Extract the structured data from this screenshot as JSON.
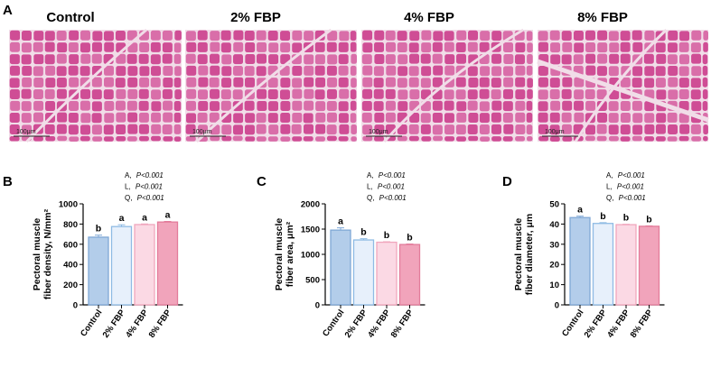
{
  "panel_letters": {
    "a": "A",
    "b": "B",
    "c": "C",
    "d": "D"
  },
  "micrographs": [
    {
      "title": "Control",
      "scale_label": "100μm"
    },
    {
      "title": "2% FBP",
      "scale_label": "100μm"
    },
    {
      "title": "4% FBP",
      "scale_label": "100μm"
    },
    {
      "title": "8% FBP",
      "scale_label": "100μm"
    }
  ],
  "colors": {
    "tissue_bg": "#d96ea9",
    "cell_fill": "#cf4d95",
    "gap": "#f1dde8",
    "bar_fills": [
      "#b3cdea",
      "#e7f0fb",
      "#fbd9e4",
      "#f1a4bb"
    ],
    "bar_strokes": [
      "#7fa8d6",
      "#8fbbe4",
      "#f0a7bd",
      "#e37c9b"
    ]
  },
  "chart_data": [
    {
      "type": "bar",
      "panel": "B",
      "categories": [
        "Control",
        "2% FBP",
        "4% FBP",
        "8% FBP"
      ],
      "values": [
        670,
        775,
        795,
        820
      ],
      "errors": [
        20,
        18,
        6,
        6
      ],
      "letters": [
        "b",
        "a",
        "a",
        "a"
      ],
      "ylabel_line1": "Pectoral muscle",
      "ylabel_line2": "fiber density, N/mm²",
      "ylim": [
        0,
        1000
      ],
      "yticks": [
        0,
        200,
        400,
        600,
        800,
        1000
      ],
      "stats": [
        {
          "label": "A,",
          "p": "P<0.001"
        },
        {
          "label": "L,",
          "p": "P<0.001"
        },
        {
          "label": "Q,",
          "p": "P<0.001"
        }
      ]
    },
    {
      "type": "bar",
      "panel": "C",
      "categories": [
        "Control",
        "2% FBP",
        "4% FBP",
        "8% FBP"
      ],
      "values": [
        1480,
        1285,
        1240,
        1195
      ],
      "errors": [
        45,
        25,
        10,
        10
      ],
      "letters": [
        "a",
        "b",
        "b",
        "b"
      ],
      "ylabel_line1": "Pectoral muscle",
      "ylabel_line2": "fiber area, μm²",
      "ylim": [
        0,
        2000
      ],
      "yticks": [
        0,
        500,
        1000,
        1500,
        2000
      ],
      "stats": [
        {
          "label": "A,",
          "p": "P<0.001"
        },
        {
          "label": "L,",
          "p": "P<0.001"
        },
        {
          "label": "Q,",
          "p": "P<0.001"
        }
      ]
    },
    {
      "type": "bar",
      "panel": "D",
      "categories": [
        "Control",
        "2% FBP",
        "4% FBP",
        "8% FBP"
      ],
      "values": [
        43.2,
        40.3,
        39.7,
        38.9
      ],
      "errors": [
        0.7,
        0.4,
        0.2,
        0.2
      ],
      "letters": [
        "a",
        "b",
        "b",
        "b"
      ],
      "ylabel_line1": "Pectoral muscle",
      "ylabel_line2": "fiber diameter, μm",
      "ylim": [
        0,
        50
      ],
      "yticks": [
        0,
        10,
        20,
        30,
        40,
        50
      ],
      "stats": [
        {
          "label": "A,",
          "p": "P<0.001"
        },
        {
          "label": "L,",
          "p": "P<0.001"
        },
        {
          "label": "Q,",
          "p": "P<0.001"
        }
      ]
    }
  ]
}
